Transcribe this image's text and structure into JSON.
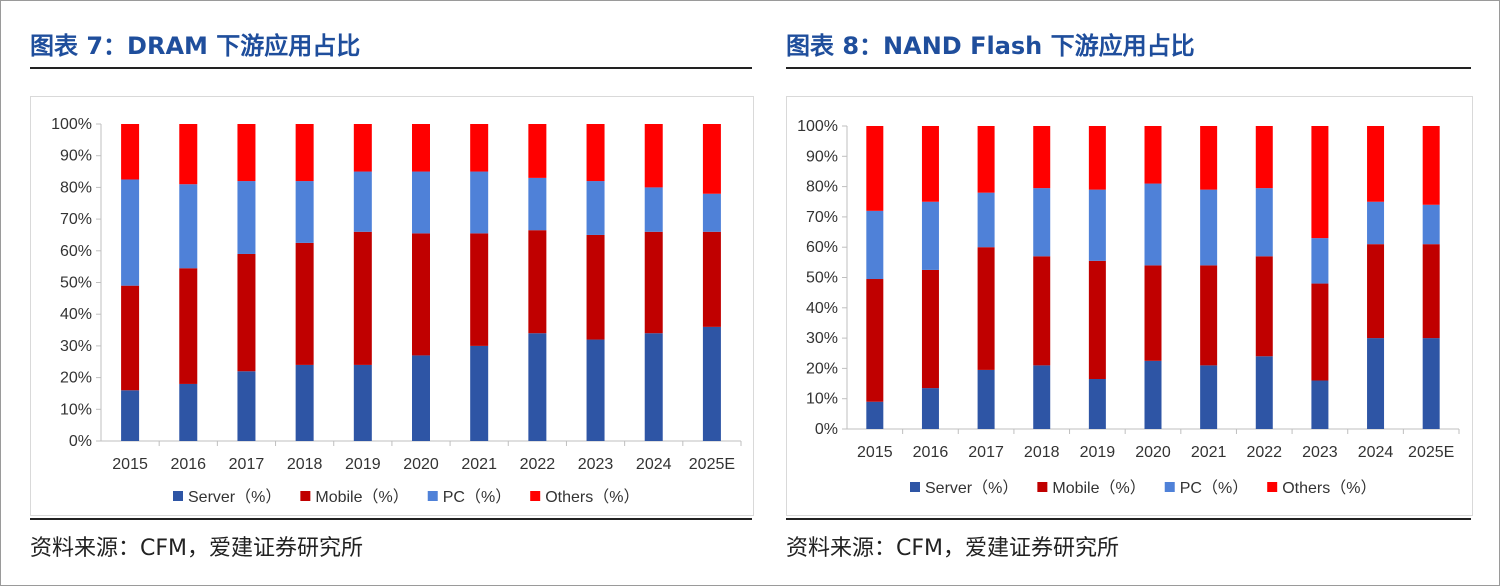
{
  "colors": {
    "title": "#1f4e9c",
    "Server": "#2e55a5",
    "Mobile": "#c00000",
    "PC": "#4f81d8",
    "Others": "#ff0000"
  },
  "left_panel": {
    "title": "图表 7：DRAM 下游应用占比",
    "source": "资料来源：CFM，爱建证券研究所"
  },
  "right_panel": {
    "title": "图表 8：NAND Flash 下游应用占比",
    "source": "资料来源：CFM，爱建证券研究所"
  },
  "chart_data": [
    {
      "type": "bar",
      "stacked": true,
      "title": "",
      "xlabel": "",
      "ylabel": "",
      "ylim": [
        0,
        100
      ],
      "yticks": [
        "0%",
        "10%",
        "20%",
        "30%",
        "40%",
        "50%",
        "60%",
        "70%",
        "80%",
        "90%",
        "100%"
      ],
      "legend_position": "bottom",
      "legend_labels": [
        "Server（%）",
        "Mobile（%）",
        "PC（%）",
        "Others（%）"
      ],
      "categories": [
        "2015",
        "2016",
        "2017",
        "2018",
        "2019",
        "2020",
        "2021",
        "2022",
        "2023",
        "2024",
        "2025E"
      ],
      "series": [
        {
          "name": "Server",
          "values": [
            16,
            18,
            22,
            24,
            24,
            27,
            30,
            34,
            32,
            34,
            36
          ]
        },
        {
          "name": "Mobile",
          "values": [
            33,
            36.5,
            37,
            38.5,
            42,
            38.5,
            35.5,
            32.5,
            33,
            32,
            30
          ]
        },
        {
          "name": "PC",
          "values": [
            33.5,
            26.5,
            23,
            19.5,
            19,
            19.5,
            19.5,
            16.5,
            17,
            14,
            12
          ]
        },
        {
          "name": "Others",
          "values": [
            17.5,
            19,
            18,
            18,
            15,
            15,
            15,
            17,
            18,
            20,
            22
          ]
        }
      ]
    },
    {
      "type": "bar",
      "stacked": true,
      "title": "",
      "xlabel": "",
      "ylabel": "",
      "ylim": [
        0,
        100
      ],
      "yticks": [
        "0%",
        "10%",
        "20%",
        "30%",
        "40%",
        "50%",
        "60%",
        "70%",
        "80%",
        "90%",
        "100%"
      ],
      "legend_position": "bottom",
      "legend_labels": [
        "Server（%）",
        "Mobile（%）",
        "PC（%）",
        "Others（%）"
      ],
      "categories": [
        "2015",
        "2016",
        "2017",
        "2018",
        "2019",
        "2020",
        "2021",
        "2022",
        "2023",
        "2024",
        "2025E"
      ],
      "series": [
        {
          "name": "Server",
          "values": [
            9,
            13.5,
            19.5,
            21,
            16.5,
            22.5,
            21,
            24,
            16,
            30,
            30
          ]
        },
        {
          "name": "Mobile",
          "values": [
            40.5,
            39,
            40.5,
            36,
            39,
            31.5,
            33,
            33,
            32,
            31,
            31
          ]
        },
        {
          "name": "PC",
          "values": [
            22.5,
            22.5,
            18,
            22.5,
            23.5,
            27,
            25,
            22.5,
            15,
            14,
            13
          ]
        },
        {
          "name": "Others",
          "values": [
            28,
            25,
            22,
            20.5,
            21,
            19,
            21,
            20.5,
            37,
            25,
            26
          ]
        }
      ]
    }
  ]
}
